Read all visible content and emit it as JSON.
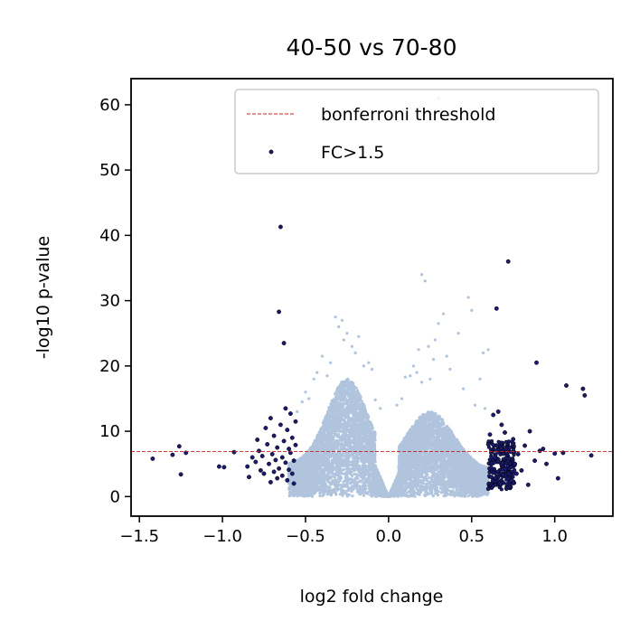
{
  "chart_data": {
    "type": "scatter",
    "title": "40-50 vs 70-80",
    "xlabel": "log2 fold change",
    "ylabel": "-log10 p-value",
    "xlim": [
      -1.55,
      1.35
    ],
    "ylim": [
      -3,
      64
    ],
    "xticks": [
      -1.5,
      -1.0,
      -0.5,
      0.0,
      0.5,
      1.0
    ],
    "xtick_labels": [
      "−1.5",
      "−1.0",
      "−0.5",
      "0.0",
      "0.5",
      "1.0"
    ],
    "yticks": [
      0,
      10,
      20,
      30,
      40,
      50,
      60
    ],
    "ytick_labels": [
      "0",
      "10",
      "20",
      "30",
      "40",
      "50",
      "60"
    ],
    "grid": false,
    "legend_position": "top-right",
    "threshold": {
      "name": "bonferroni threshold",
      "y": 6.9,
      "color": "#cc1f1f",
      "style": "dashed"
    },
    "series": [
      {
        "name": "FC>1.5",
        "color": "#1a1a6e",
        "points": [
          [
            -1.42,
            5.8
          ],
          [
            -1.3,
            6.4
          ],
          [
            -1.26,
            7.7
          ],
          [
            -1.25,
            3.4
          ],
          [
            -1.22,
            6.7
          ],
          [
            -1.02,
            4.6
          ],
          [
            -0.99,
            4.5
          ],
          [
            -0.93,
            6.8
          ],
          [
            -0.85,
            4.6
          ],
          [
            -0.84,
            3.0
          ],
          [
            -0.82,
            6.0
          ],
          [
            -0.8,
            5.3
          ],
          [
            -0.79,
            8.7
          ],
          [
            -0.78,
            7.0
          ],
          [
            -0.77,
            4.0
          ],
          [
            -0.76,
            6.2
          ],
          [
            -0.75,
            3.5
          ],
          [
            -0.74,
            10.5
          ],
          [
            -0.73,
            8.0
          ],
          [
            -0.72,
            5.0
          ],
          [
            -0.71,
            2.2
          ],
          [
            -0.71,
            12.0
          ],
          [
            -0.7,
            6.5
          ],
          [
            -0.69,
            3.8
          ],
          [
            -0.69,
            9.3
          ],
          [
            -0.68,
            5.6
          ],
          [
            -0.67,
            7.5
          ],
          [
            -0.67,
            2.8
          ],
          [
            -0.66,
            4.3
          ],
          [
            -0.66,
            28.3
          ],
          [
            -0.65,
            41.3
          ],
          [
            -0.65,
            11.0
          ],
          [
            -0.64,
            6.0
          ],
          [
            -0.64,
            3.2
          ],
          [
            -0.63,
            23.5
          ],
          [
            -0.63,
            8.5
          ],
          [
            -0.62,
            13.5
          ],
          [
            -0.62,
            5.2
          ],
          [
            -0.61,
            2.5
          ],
          [
            -0.61,
            10.2
          ],
          [
            -0.6,
            7.3
          ],
          [
            -0.6,
            4.1
          ],
          [
            -0.59,
            12.7
          ],
          [
            -0.59,
            6.7
          ],
          [
            -0.58,
            3.5
          ],
          [
            -0.58,
            9.0
          ],
          [
            -0.57,
            5.5
          ],
          [
            -0.57,
            2.0
          ],
          [
            -0.56,
            7.9
          ],
          [
            -0.56,
            11.5
          ],
          [
            0.6,
            1.2
          ],
          [
            0.6,
            8.0
          ],
          [
            0.61,
            9.5
          ],
          [
            0.62,
            3.0
          ],
          [
            0.63,
            12.5
          ],
          [
            0.64,
            6.0
          ],
          [
            0.65,
            28.8
          ],
          [
            0.66,
            13.0
          ],
          [
            0.67,
            2.0
          ],
          [
            0.68,
            11.0
          ],
          [
            0.7,
            9.8
          ],
          [
            0.71,
            1.2
          ],
          [
            0.72,
            36.0
          ],
          [
            0.73,
            7.5
          ],
          [
            0.74,
            2.5
          ],
          [
            0.75,
            8.8
          ],
          [
            0.76,
            5.0
          ],
          [
            0.77,
            3.5
          ],
          [
            0.78,
            6.5
          ],
          [
            0.8,
            4.0
          ],
          [
            0.82,
            7.8
          ],
          [
            0.84,
            1.8
          ],
          [
            0.85,
            10.0
          ],
          [
            0.88,
            5.5
          ],
          [
            0.89,
            20.5
          ],
          [
            0.91,
            7.0
          ],
          [
            0.93,
            7.3
          ],
          [
            0.95,
            5.0
          ],
          [
            1.0,
            6.6
          ],
          [
            1.02,
            2.8
          ],
          [
            1.05,
            6.7
          ],
          [
            1.07,
            17.0
          ],
          [
            1.17,
            16.5
          ],
          [
            1.18,
            15.5
          ],
          [
            1.22,
            6.3
          ]
        ]
      },
      {
        "name": "",
        "color": "#b0c4de",
        "points": [
          [
            -0.32,
            27.5
          ],
          [
            -0.3,
            26.0
          ],
          [
            -0.28,
            27.0
          ],
          [
            -0.25,
            25.0
          ],
          [
            -0.22,
            23.0
          ],
          [
            -0.2,
            22.0
          ],
          [
            -0.18,
            24.5
          ],
          [
            -0.15,
            20.0
          ],
          [
            -0.12,
            20.5
          ],
          [
            -0.1,
            19.5
          ],
          [
            -0.45,
            18.0
          ],
          [
            -0.43,
            19.0
          ],
          [
            -0.4,
            21.5
          ],
          [
            -0.37,
            18.5
          ],
          [
            -0.35,
            20.5
          ],
          [
            -0.52,
            14.5
          ],
          [
            -0.5,
            16.0
          ],
          [
            -0.48,
            15.0
          ],
          [
            0.2,
            34.0
          ],
          [
            0.22,
            33.0
          ],
          [
            0.3,
            61.0
          ],
          [
            0.33,
            28.0
          ],
          [
            0.48,
            30.5
          ],
          [
            0.5,
            28.5
          ],
          [
            0.57,
            22.0
          ],
          [
            0.55,
            18.0
          ],
          [
            0.6,
            22.5
          ],
          [
            0.3,
            26.5
          ],
          [
            0.35,
            21.5
          ],
          [
            0.42,
            25.0
          ],
          [
            0.37,
            19.5
          ],
          [
            0.27,
            21.0
          ],
          [
            0.24,
            23.0
          ],
          [
            0.18,
            22.5
          ],
          [
            0.15,
            20.0
          ],
          [
            0.13,
            18.5
          ],
          [
            0.2,
            17.5
          ],
          [
            0.45,
            16.5
          ],
          [
            0.52,
            14.0
          ],
          [
            0.1,
            18.3
          ],
          [
            0.08,
            15.0
          ],
          [
            0.05,
            14.0
          ],
          [
            -0.05,
            13.5
          ],
          [
            -0.08,
            14.8
          ],
          [
            0.25,
            18.0
          ],
          [
            -0.55,
            13.0
          ],
          [
            0.58,
            13.5
          ],
          [
            0.28,
            24.0
          ],
          [
            -0.27,
            24.0
          ],
          [
            0.17,
            19.0
          ]
        ]
      }
    ]
  }
}
